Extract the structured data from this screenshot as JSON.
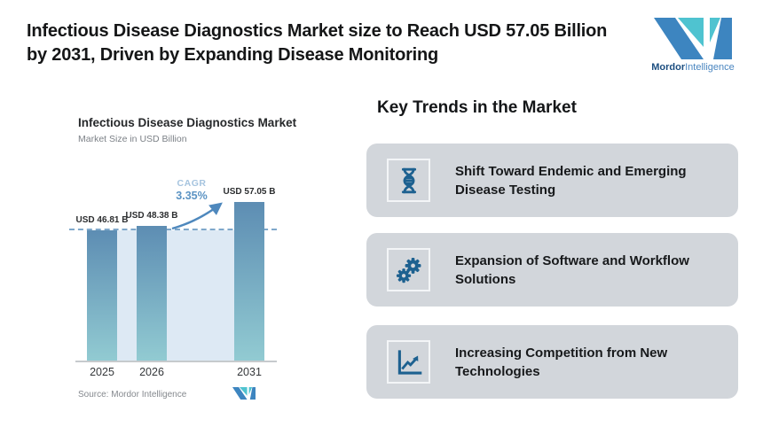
{
  "header": {
    "title_line1": "Infectious Disease Diagnostics Market size to Reach USD 57.05 Billion",
    "title_line2": "by 2031, Driven by Expanding Disease Monitoring",
    "brand": {
      "bold": "Mordor",
      "light": "Intelligence"
    }
  },
  "chart": {
    "title": "Infectious Disease Diagnostics Market",
    "subtitle": "Market Size in USD Billion",
    "cagr_label": "CAGR",
    "cagr_value": "3.35%",
    "source": "Source: Mordor Intelligence"
  },
  "chart_data": {
    "type": "bar",
    "title": "Infectious Disease Diagnostics Market",
    "ylabel": "Market Size in USD Billion",
    "categories": [
      "2025",
      "2026",
      "2031"
    ],
    "values": [
      46.81,
      48.38,
      57.05
    ],
    "value_labels": [
      "USD 46.81 B",
      "USD 48.38 B",
      "USD 57.05 B"
    ],
    "cagr_percent": 3.35,
    "baseline_value": 46.81,
    "grid": "off",
    "annotations": [
      "CAGR 3.35%",
      "dashed baseline at 46.81"
    ]
  },
  "trends": {
    "heading": "Key Trends in the Market",
    "items": [
      {
        "icon": "dna-icon",
        "text": "Shift Toward Endemic and Emerging Disease Testing"
      },
      {
        "icon": "gears-icon",
        "text": "Expansion of Software and Workflow Solutions"
      },
      {
        "icon": "line-chart-icon",
        "text": "Increasing Competition from New Technologies"
      }
    ]
  },
  "colors": {
    "logo_blue": "#3d85c0",
    "logo_teal": "#4fc3d0",
    "bar_top": "#5d8db3",
    "bar_bottom": "#92cbd2",
    "panel_blue": "#dde9f4",
    "dashed_blue": "#7fa8cb",
    "arrow_blue": "#4e88bd",
    "icon_blue": "#1d6190",
    "card_gray": "#d2d6db"
  }
}
